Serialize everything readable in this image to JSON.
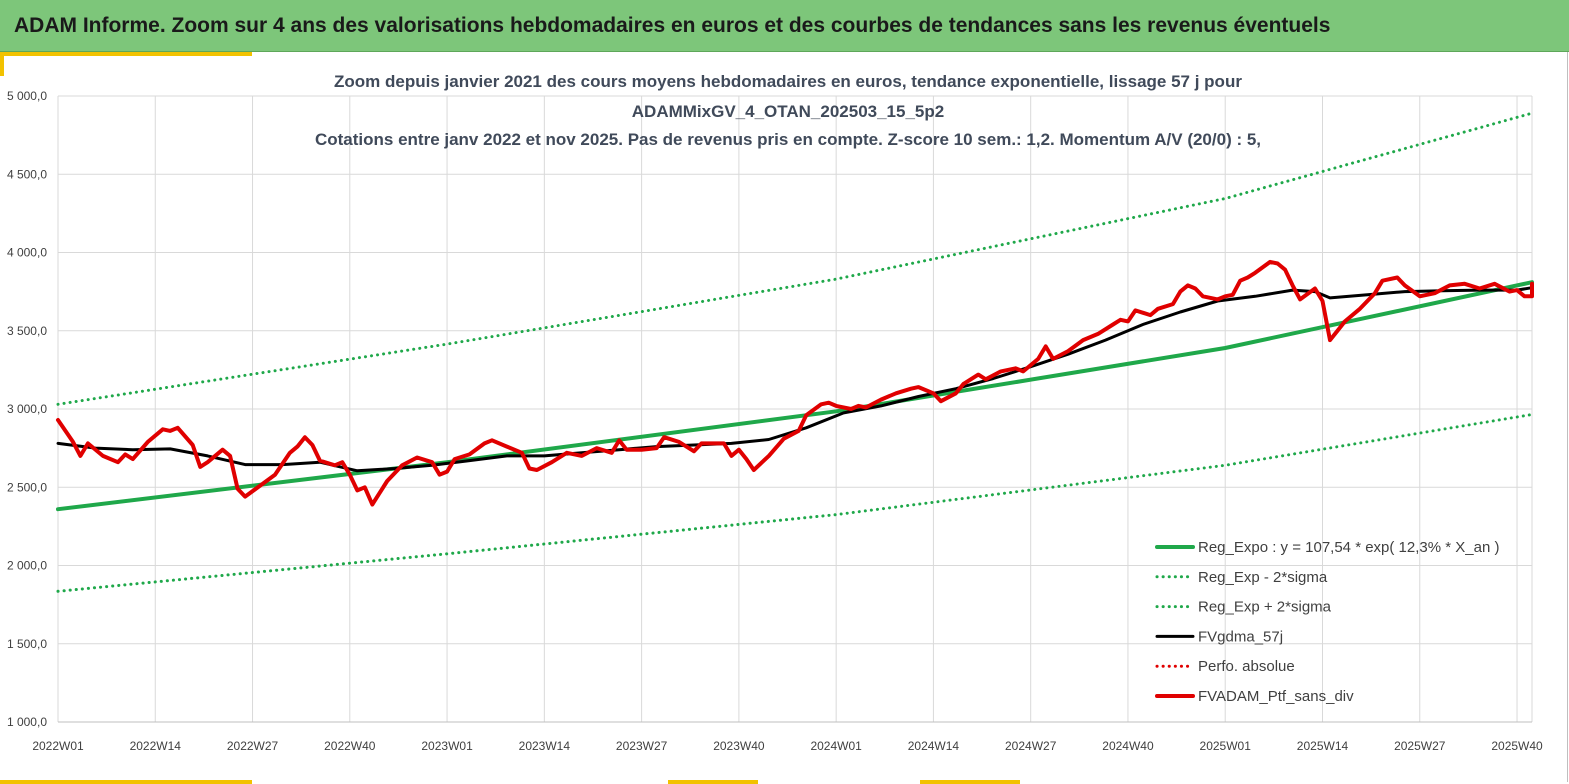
{
  "header": {
    "title": "ADAM Informe. Zoom sur 4 ans des valorisations hebdomadaires en euros et des courbes de tendances sans les revenus éventuels"
  },
  "colors": {
    "header_bg": "#7dc67a",
    "accent": "#f2c200",
    "trend_green": "#1fa84a",
    "black": "#000000",
    "red": "#e00000",
    "grid": "#d9d9d9"
  },
  "chart_data": {
    "type": "line",
    "title": [
      "Zoom depuis janvier 2021 des cours moyens hebdomadaires  en euros, tendance exponentielle, lissage 57 j pour",
      "ADAMMixGV_4_OTAN_202503_15_5p2",
      "Cotations entre janv 2022 et nov 2025. Pas de revenus pris en compte. Z-score 10 sem.: 1,2. Momentum A/V (20/0) : 5,"
    ],
    "xlabel": "",
    "ylabel": "",
    "ylim": [
      1000,
      5000
    ],
    "xlim": [
      0,
      197
    ],
    "grid": true,
    "legend_position": "bottom-right",
    "y_ticks": [
      {
        "value": 1000,
        "label": "1 000,0"
      },
      {
        "value": 1500,
        "label": "1 500,0"
      },
      {
        "value": 2000,
        "label": "2 000,0"
      },
      {
        "value": 2500,
        "label": "2 500,0"
      },
      {
        "value": 3000,
        "label": "3 000,0"
      },
      {
        "value": 3500,
        "label": "3 500,0"
      },
      {
        "value": 4000,
        "label": "4 000,0"
      },
      {
        "value": 4500,
        "label": "4 500,0"
      },
      {
        "value": 5000,
        "label": "5 000,0"
      }
    ],
    "x_ticks": [
      {
        "week": 0,
        "label": "2022W01"
      },
      {
        "week": 13,
        "label": "2022W14"
      },
      {
        "week": 26,
        "label": "2022W27"
      },
      {
        "week": 39,
        "label": "2022W40"
      },
      {
        "week": 52,
        "label": "2023W01"
      },
      {
        "week": 65,
        "label": "2023W14"
      },
      {
        "week": 78,
        "label": "2023W27"
      },
      {
        "week": 91,
        "label": "2023W40"
      },
      {
        "week": 104,
        "label": "2024W01"
      },
      {
        "week": 117,
        "label": "2024W14"
      },
      {
        "week": 130,
        "label": "2024W27"
      },
      {
        "week": 143,
        "label": "2024W40"
      },
      {
        "week": 156,
        "label": "2025W01"
      },
      {
        "week": 169,
        "label": "2025W14"
      },
      {
        "week": 182,
        "label": "2025W27"
      },
      {
        "week": 195,
        "label": "2025W40"
      }
    ],
    "series": [
      {
        "name": "Reg_Expo : y = 107,54 * exp( 12,3% *  X_an )",
        "style": "solid-thick",
        "color": "#1fa84a",
        "points": [
          [
            0,
            2360
          ],
          [
            52,
            2660
          ],
          [
            104,
            2985
          ],
          [
            156,
            3390
          ],
          [
            203,
            3810
          ]
        ]
      },
      {
        "name": "Reg_Exp - 2*sigma",
        "style": "dotted",
        "color": "#1fa84a",
        "points": [
          [
            0,
            1835
          ],
          [
            52,
            2075
          ],
          [
            104,
            2325
          ],
          [
            156,
            2640
          ],
          [
            203,
            2965
          ]
        ]
      },
      {
        "name": "Reg_Exp + 2*sigma",
        "style": "dotted",
        "color": "#1fa84a",
        "points": [
          [
            0,
            3030
          ],
          [
            52,
            3415
          ],
          [
            104,
            3830
          ],
          [
            156,
            4345
          ],
          [
            203,
            4890
          ]
        ]
      },
      {
        "name": "FVgdma_57j",
        "style": "solid",
        "color": "#000000",
        "points": [
          [
            0,
            2780
          ],
          [
            5,
            2750
          ],
          [
            10,
            2740
          ],
          [
            15,
            2745
          ],
          [
            20,
            2700
          ],
          [
            25,
            2645
          ],
          [
            30,
            2645
          ],
          [
            35,
            2660
          ],
          [
            40,
            2605
          ],
          [
            45,
            2620
          ],
          [
            50,
            2640
          ],
          [
            55,
            2670
          ],
          [
            60,
            2700
          ],
          [
            65,
            2700
          ],
          [
            70,
            2720
          ],
          [
            75,
            2740
          ],
          [
            80,
            2760
          ],
          [
            85,
            2770
          ],
          [
            90,
            2780
          ],
          [
            95,
            2805
          ],
          [
            100,
            2880
          ],
          [
            105,
            2975
          ],
          [
            110,
            3020
          ],
          [
            115,
            3080
          ],
          [
            120,
            3130
          ],
          [
            125,
            3195
          ],
          [
            130,
            3270
          ],
          [
            135,
            3350
          ],
          [
            140,
            3440
          ],
          [
            145,
            3540
          ],
          [
            150,
            3620
          ],
          [
            155,
            3690
          ],
          [
            160,
            3720
          ],
          [
            165,
            3760
          ],
          [
            168,
            3750
          ],
          [
            170,
            3710
          ],
          [
            175,
            3730
          ],
          [
            180,
            3750
          ],
          [
            185,
            3755
          ],
          [
            190,
            3760
          ],
          [
            195,
            3760
          ],
          [
            200,
            3775
          ],
          [
            203,
            3790
          ]
        ]
      },
      {
        "name": "Perfo. absolue",
        "style": "dotted",
        "color": "#e00000",
        "points": [
          [
            197,
            3790
          ],
          [
            199,
            3765
          ],
          [
            201,
            3770
          ],
          [
            203,
            3750
          ]
        ]
      },
      {
        "name": "FVADAM_Ptf_sans_div",
        "style": "solid-thick",
        "color": "#e00000",
        "points": [
          [
            0,
            2930
          ],
          [
            2,
            2790
          ],
          [
            3,
            2700
          ],
          [
            4,
            2780
          ],
          [
            6,
            2700
          ],
          [
            8,
            2660
          ],
          [
            9,
            2710
          ],
          [
            10,
            2680
          ],
          [
            12,
            2790
          ],
          [
            14,
            2870
          ],
          [
            15,
            2860
          ],
          [
            16,
            2880
          ],
          [
            18,
            2770
          ],
          [
            19,
            2630
          ],
          [
            20,
            2660
          ],
          [
            22,
            2740
          ],
          [
            23,
            2700
          ],
          [
            24,
            2490
          ],
          [
            25,
            2440
          ],
          [
            27,
            2510
          ],
          [
            29,
            2580
          ],
          [
            31,
            2720
          ],
          [
            32,
            2760
          ],
          [
            33,
            2820
          ],
          [
            34,
            2770
          ],
          [
            35,
            2670
          ],
          [
            37,
            2640
          ],
          [
            38,
            2660
          ],
          [
            39,
            2580
          ],
          [
            40,
            2480
          ],
          [
            41,
            2500
          ],
          [
            42,
            2390
          ],
          [
            44,
            2540
          ],
          [
            46,
            2640
          ],
          [
            48,
            2690
          ],
          [
            50,
            2660
          ],
          [
            51,
            2580
          ],
          [
            52,
            2600
          ],
          [
            53,
            2680
          ],
          [
            55,
            2710
          ],
          [
            57,
            2780
          ],
          [
            58,
            2800
          ],
          [
            60,
            2760
          ],
          [
            62,
            2720
          ],
          [
            63,
            2620
          ],
          [
            64,
            2610
          ],
          [
            66,
            2660
          ],
          [
            68,
            2720
          ],
          [
            70,
            2700
          ],
          [
            72,
            2750
          ],
          [
            74,
            2720
          ],
          [
            75,
            2800
          ],
          [
            76,
            2740
          ],
          [
            78,
            2740
          ],
          [
            80,
            2750
          ],
          [
            81,
            2820
          ],
          [
            83,
            2790
          ],
          [
            85,
            2730
          ],
          [
            86,
            2780
          ],
          [
            88,
            2780
          ],
          [
            89,
            2780
          ],
          [
            90,
            2700
          ],
          [
            91,
            2740
          ],
          [
            92,
            2680
          ],
          [
            93,
            2610
          ],
          [
            95,
            2700
          ],
          [
            97,
            2810
          ],
          [
            99,
            2860
          ],
          [
            100,
            2960
          ],
          [
            102,
            3030
          ],
          [
            103,
            3040
          ],
          [
            104,
            3020
          ],
          [
            106,
            3000
          ],
          [
            107,
            3020
          ],
          [
            108,
            3010
          ],
          [
            110,
            3060
          ],
          [
            112,
            3100
          ],
          [
            114,
            3130
          ],
          [
            115,
            3140
          ],
          [
            117,
            3100
          ],
          [
            118,
            3050
          ],
          [
            120,
            3100
          ],
          [
            121,
            3160
          ],
          [
            123,
            3220
          ],
          [
            124,
            3190
          ],
          [
            126,
            3240
          ],
          [
            128,
            3260
          ],
          [
            129,
            3240
          ],
          [
            131,
            3320
          ],
          [
            132,
            3400
          ],
          [
            133,
            3320
          ],
          [
            135,
            3370
          ],
          [
            137,
            3440
          ],
          [
            139,
            3480
          ],
          [
            141,
            3540
          ],
          [
            142,
            3570
          ],
          [
            143,
            3560
          ],
          [
            144,
            3630
          ],
          [
            146,
            3600
          ],
          [
            147,
            3640
          ],
          [
            149,
            3670
          ],
          [
            150,
            3750
          ],
          [
            151,
            3790
          ],
          [
            152,
            3770
          ],
          [
            153,
            3720
          ],
          [
            155,
            3700
          ],
          [
            156,
            3720
          ],
          [
            157,
            3730
          ],
          [
            158,
            3820
          ],
          [
            159,
            3840
          ],
          [
            160,
            3870
          ],
          [
            162,
            3940
          ],
          [
            163,
            3930
          ],
          [
            164,
            3890
          ],
          [
            165,
            3790
          ],
          [
            166,
            3700
          ],
          [
            168,
            3770
          ],
          [
            169,
            3690
          ],
          [
            170,
            3440
          ],
          [
            171,
            3500
          ],
          [
            172,
            3560
          ],
          [
            174,
            3640
          ],
          [
            176,
            3740
          ],
          [
            177,
            3820
          ],
          [
            179,
            3840
          ],
          [
            180,
            3790
          ],
          [
            182,
            3720
          ],
          [
            184,
            3740
          ],
          [
            186,
            3790
          ],
          [
            188,
            3800
          ],
          [
            190,
            3770
          ],
          [
            192,
            3800
          ],
          [
            194,
            3750
          ],
          [
            195,
            3760
          ],
          [
            196,
            3720
          ],
          [
            197,
            3720
          ],
          [
            198,
            3750
          ],
          [
            199,
            3720
          ],
          [
            201,
            3790
          ],
          [
            202,
            3800
          ]
        ]
      }
    ]
  }
}
